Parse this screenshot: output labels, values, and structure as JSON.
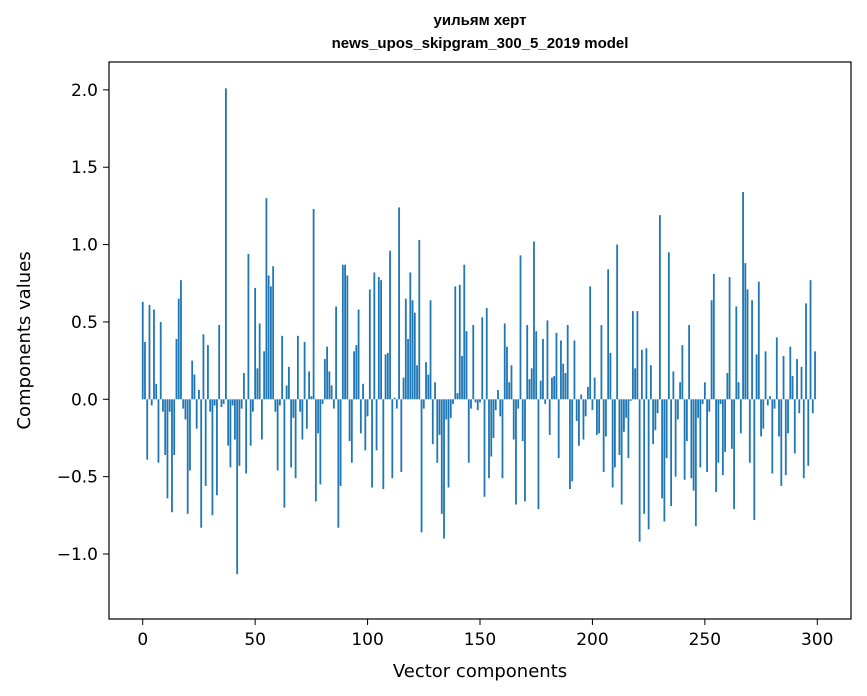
{
  "chart_data": {
    "type": "bar",
    "title_line1": "уильям херт",
    "title_line2": "news_upos_skipgram_300_5_2019 model",
    "xlabel": "Vector components",
    "ylabel": "Components values",
    "xlim": [
      -15,
      315
    ],
    "ylim": [
      -1.42,
      2.18
    ],
    "xticks": [
      0,
      50,
      100,
      150,
      200,
      250,
      300
    ],
    "yticks": [
      -1.0,
      -0.5,
      0.0,
      0.5,
      1.0,
      1.5,
      2.0
    ],
    "ytick_labels": [
      "−1.0",
      "−0.5",
      "0.0",
      "0.5",
      "1.0",
      "1.5",
      "2.0"
    ],
    "bar_color": "#1f77b4",
    "values": [
      0.63,
      0.37,
      -0.39,
      0.61,
      -0.04,
      0.58,
      0.1,
      -0.41,
      0.5,
      -0.08,
      -0.36,
      -0.64,
      -0.08,
      -0.73,
      -0.36,
      0.39,
      0.65,
      0.77,
      -0.06,
      -0.13,
      -0.74,
      -0.46,
      0.25,
      0.16,
      -0.19,
      0.06,
      -0.83,
      0.42,
      -0.56,
      0.35,
      -0.08,
      -0.75,
      -0.04,
      -0.62,
      0.48,
      -0.05,
      -0.03,
      2.01,
      -0.3,
      -0.44,
      -0.04,
      -0.26,
      -1.13,
      -0.43,
      -0.06,
      0.17,
      -0.48,
      0.94,
      -0.3,
      -0.08,
      0.72,
      0.2,
      0.49,
      -0.26,
      0.31,
      1.3,
      0.8,
      0.73,
      0.86,
      -0.08,
      -0.46,
      -0.04,
      0.41,
      -0.7,
      0.09,
      0.21,
      -0.44,
      -0.12,
      -0.51,
      0.41,
      -0.08,
      -0.26,
      0.37,
      -0.19,
      0.18,
      0.02,
      1.23,
      -0.66,
      -0.22,
      -0.55,
      -0.03,
      0.26,
      0.34,
      0.18,
      0.09,
      -0.06,
      0.6,
      -0.83,
      -0.56,
      0.87,
      0.87,
      0.8,
      -0.27,
      -0.41,
      0.31,
      0.35,
      0.58,
      -0.22,
      0.1,
      -0.33,
      -0.11,
      0.71,
      -0.57,
      0.82,
      -0.33,
      0.79,
      0.77,
      -0.58,
      0.29,
      0.3,
      0.96,
      -0.51,
      0.01,
      -0.06,
      1.24,
      -0.47,
      0.14,
      0.65,
      0.39,
      0.82,
      0.64,
      0.56,
      0.22,
      1.03,
      -0.86,
      -0.06,
      0.24,
      0.16,
      0.64,
      -0.29,
      0.11,
      -0.41,
      -0.23,
      -0.74,
      -0.9,
      -0.13,
      -0.57,
      -0.12,
      -0.03,
      0.73,
      0.04,
      0.74,
      0.28,
      0.87,
      0.44,
      -0.41,
      -0.06,
      0.48,
      -0.02,
      -0.07,
      -0.02,
      0.53,
      -0.63,
      0.59,
      -0.51,
      -0.37,
      -0.25,
      -0.07,
      0.06,
      -0.11,
      -0.51,
      0.49,
      0.34,
      0.11,
      0.22,
      -0.26,
      -0.68,
      -0.06,
      0.93,
      -0.27,
      -0.66,
      0.48,
      0.13,
      0.2,
      1.02,
      0.44,
      -0.71,
      0.12,
      0.39,
      -0.03,
      0.51,
      -0.23,
      0.14,
      0.15,
      0.43,
      -0.38,
      0.38,
      0.23,
      0.17,
      0.48,
      -0.58,
      -0.53,
      0.38,
      -0.14,
      -0.3,
      0.03,
      -0.26,
      -0.11,
      0.08,
      0.73,
      -0.07,
      0.14,
      -0.23,
      -0.22,
      0.48,
      -0.47,
      -0.24,
      0.84,
      0.3,
      -0.57,
      -0.44,
      1.0,
      -0.36,
      -0.68,
      -0.21,
      -0.12,
      -0.38,
      -0.01,
      0.57,
      0.2,
      0.57,
      -0.92,
      0.32,
      -0.74,
      0.33,
      -0.84,
      0.22,
      -0.29,
      -0.2,
      -0.09,
      1.19,
      -0.64,
      -0.79,
      -0.38,
      0.95,
      -0.69,
      0.18,
      -0.5,
      -0.13,
      0.11,
      0.35,
      -0.52,
      -0.27,
      0.48,
      -0.51,
      -0.59,
      -0.82,
      -0.12,
      -0.44,
      -0.03,
      0.11,
      -0.47,
      -0.08,
      0.64,
      0.81,
      -0.6,
      -0.41,
      -0.03,
      -0.49,
      -0.34,
      0.17,
      0.79,
      -0.32,
      -0.71,
      0.6,
      0.11,
      -0.22,
      1.34,
      0.88,
      0.71,
      -0.41,
      0.64,
      -0.78,
      0.29,
      0.76,
      -0.24,
      -0.19,
      0.31,
      -0.04,
      0.02,
      -0.48,
      -0.06,
      0.4,
      -0.24,
      -0.56,
      0.28,
      -0.49,
      -0.22,
      0.34,
      0.15,
      -0.35,
      0.26,
      -0.09,
      0.21,
      -0.51,
      0.62,
      -0.43,
      0.77,
      -0.09,
      0.31
    ]
  }
}
